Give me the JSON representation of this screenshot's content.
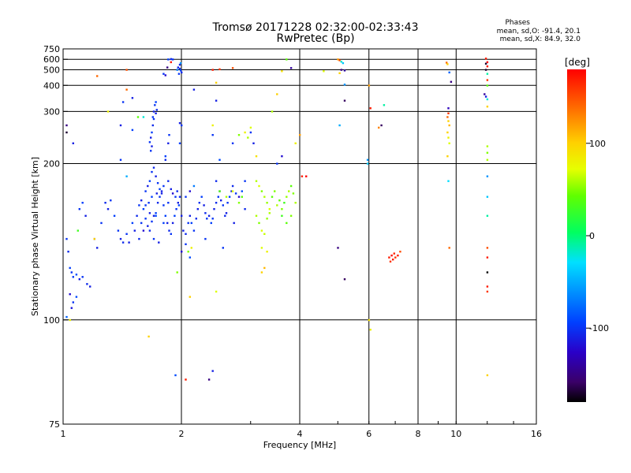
{
  "header": {
    "title": "Tromsø 20171228 02:32:00-02:33:43",
    "subtitle": "RwPretec (Bp)",
    "stats_title": "Phases",
    "stats_line1": "mean, sd,O: -91.4, 20.1",
    "stats_line2": "mean, sd,X:  84.9, 32.0"
  },
  "colorbar": {
    "title": "[deg]",
    "tick_labels": [
      "100",
      "0",
      "-100"
    ],
    "ticks": [
      100,
      0,
      -100
    ],
    "range": [
      -180,
      180
    ]
  },
  "chart_data": {
    "type": "scatter",
    "xlabel": "Frequency [MHz]",
    "ylabel": "Stationary phase Virtual Height [km]",
    "xscale": "log2",
    "yscale": "reciprocal",
    "xlim": [
      1,
      16
    ],
    "ylim": [
      75,
      750
    ],
    "x_ticks": [
      1,
      2,
      4,
      6,
      8,
      10,
      16
    ],
    "x_tick_labels": [
      "1",
      "2",
      "4",
      "6",
      "8",
      "10",
      "16"
    ],
    "y_ticks": [
      75,
      100,
      200,
      300,
      400,
      500,
      600,
      750
    ],
    "y_tick_labels": [
      "75",
      "100",
      "200",
      "300",
      "400",
      "500",
      "600",
      "750"
    ],
    "grid": true,
    "color_encodes": "phase [deg]",
    "points": [
      [
        1.02,
        135,
        -100
      ],
      [
        1.03,
        128,
        -105
      ],
      [
        1.04,
        120,
        -95
      ],
      [
        1.05,
        118,
        -100
      ],
      [
        1.06,
        116,
        -98
      ],
      [
        1.08,
        117,
        -90
      ],
      [
        1.1,
        115,
        -110
      ],
      [
        1.12,
        116,
        -100
      ],
      [
        1.15,
        113,
        -105
      ],
      [
        1.17,
        112,
        -110
      ],
      [
        1.04,
        109,
        -120
      ],
      [
        1.05,
        104,
        -115
      ],
      [
        1.06,
        106,
        -100
      ],
      [
        1.08,
        108,
        -90
      ],
      [
        1.02,
        101,
        -80
      ],
      [
        1.04,
        100,
        80
      ],
      [
        1.09,
        140,
        30
      ],
      [
        1.1,
        155,
        -100
      ],
      [
        1.12,
        160,
        -95
      ],
      [
        1.14,
        150,
        -110
      ],
      [
        1.2,
        135,
        -105
      ],
      [
        1.22,
        130,
        -110
      ],
      [
        1.25,
        145,
        -100
      ],
      [
        1.28,
        160,
        -105
      ],
      [
        1.3,
        155,
        -110
      ],
      [
        1.32,
        162,
        -100
      ],
      [
        1.35,
        150,
        -95
      ],
      [
        1.38,
        140,
        -100
      ],
      [
        1.4,
        135,
        -110
      ],
      [
        1.42,
        133,
        -105
      ],
      [
        1.45,
        138,
        -100
      ],
      [
        1.47,
        133,
        -110
      ],
      [
        1.5,
        145,
        -95
      ],
      [
        1.52,
        140,
        -110
      ],
      [
        1.54,
        150,
        -105
      ],
      [
        1.56,
        158,
        -100
      ],
      [
        1.58,
        162,
        -110
      ],
      [
        1.6,
        155,
        -95
      ],
      [
        1.62,
        148,
        -100
      ],
      [
        1.64,
        143,
        -110
      ],
      [
        1.66,
        140,
        -105
      ],
      [
        1.68,
        146,
        -100
      ],
      [
        1.7,
        150,
        -110
      ],
      [
        1.72,
        152,
        -95
      ],
      [
        1.74,
        160,
        -105
      ],
      [
        1.76,
        165,
        -100
      ],
      [
        1.78,
        170,
        -110
      ],
      [
        1.8,
        158,
        -100
      ],
      [
        1.82,
        150,
        -95
      ],
      [
        1.84,
        145,
        -110
      ],
      [
        1.86,
        140,
        -105
      ],
      [
        1.88,
        138,
        -100
      ],
      [
        1.9,
        145,
        -110
      ],
      [
        1.92,
        150,
        -95
      ],
      [
        1.94,
        155,
        -100
      ],
      [
        1.96,
        160,
        -110
      ],
      [
        1.98,
        165,
        -105
      ],
      [
        1.62,
        170,
        -100
      ],
      [
        1.64,
        175,
        -110
      ],
      [
        1.66,
        180,
        -95
      ],
      [
        1.68,
        190,
        -100
      ],
      [
        1.7,
        195,
        -105
      ],
      [
        1.72,
        185,
        -110
      ],
      [
        1.74,
        178,
        -100
      ],
      [
        1.76,
        172,
        -95
      ],
      [
        1.78,
        168,
        -110
      ],
      [
        1.58,
        145,
        -100
      ],
      [
        1.6,
        140,
        -120
      ],
      [
        1.56,
        135,
        -105
      ],
      [
        1.7,
        135,
        -100
      ],
      [
        1.75,
        133,
        -110
      ],
      [
        1.8,
        145,
        -95
      ],
      [
        1.85,
        160,
        -100
      ],
      [
        1.9,
        168,
        -120
      ],
      [
        1.95,
        170,
        -105
      ],
      [
        1.72,
        150,
        -90
      ],
      [
        1.66,
        152,
        -110
      ],
      [
        1.62,
        158,
        -100
      ],
      [
        1.68,
        165,
        -95
      ],
      [
        1.73,
        168,
        -110
      ],
      [
        1.8,
        175,
        -100
      ],
      [
        1.85,
        180,
        -105
      ],
      [
        1.88,
        172,
        -110
      ],
      [
        1.93,
        165,
        -100
      ],
      [
        1.97,
        158,
        -95
      ],
      [
        2.0,
        150,
        -110
      ],
      [
        1.65,
        160,
        -100
      ],
      [
        1.66,
        232,
        -100
      ],
      [
        1.67,
        240,
        -110
      ],
      [
        1.68,
        250,
        -95
      ],
      [
        1.69,
        265,
        -105
      ],
      [
        1.7,
        280,
        -100
      ],
      [
        1.7,
        300,
        -110
      ],
      [
        1.71,
        320,
        -100
      ],
      [
        1.72,
        330,
        -95
      ],
      [
        1.72,
        295,
        -110
      ],
      [
        1.69,
        285,
        -100
      ],
      [
        1.73,
        305,
        -105
      ],
      [
        1.68,
        225,
        -110
      ],
      [
        1.67,
        218,
        -100
      ],
      [
        1.82,
        210,
        -95
      ],
      [
        1.85,
        230,
        -110
      ],
      [
        1.86,
        245,
        -100
      ],
      [
        1.82,
        205,
        -105
      ],
      [
        1.98,
        270,
        -110
      ],
      [
        2.0,
        265,
        -100
      ],
      [
        1.98,
        230,
        -95
      ],
      [
        1.85,
        600,
        -95
      ],
      [
        1.88,
        605,
        -105
      ],
      [
        1.9,
        600,
        -100
      ],
      [
        1.96,
        520,
        -110
      ],
      [
        1.98,
        510,
        -100
      ],
      [
        1.99,
        495,
        -95
      ],
      [
        2.0,
        480,
        -105
      ],
      [
        1.97,
        470,
        -100
      ],
      [
        1.98,
        545,
        -110
      ],
      [
        1.99,
        560,
        -60
      ],
      [
        1.95,
        500,
        -70
      ],
      [
        1.8,
        470,
        -100
      ],
      [
        1.82,
        460,
        -120
      ],
      [
        1.84,
        520,
        -150
      ],
      [
        1.88,
        570,
        170
      ],
      [
        2.02,
        140,
        -110
      ],
      [
        2.05,
        138,
        -105
      ],
      [
        2.08,
        145,
        -100
      ],
      [
        2.1,
        150,
        -110
      ],
      [
        2.12,
        145,
        -95
      ],
      [
        2.15,
        140,
        -100
      ],
      [
        2.18,
        148,
        -105
      ],
      [
        2.2,
        155,
        -110
      ],
      [
        2.22,
        160,
        -100
      ],
      [
        2.25,
        165,
        -95
      ],
      [
        2.28,
        158,
        -110
      ],
      [
        2.3,
        152,
        -105
      ],
      [
        2.32,
        148,
        -100
      ],
      [
        2.35,
        150,
        -110
      ],
      [
        2.38,
        145,
        -95
      ],
      [
        2.4,
        148,
        -100
      ],
      [
        2.42,
        155,
        -110
      ],
      [
        2.45,
        160,
        -105
      ],
      [
        2.48,
        165,
        -100
      ],
      [
        2.5,
        170,
        -95
      ],
      [
        2.52,
        162,
        -110
      ],
      [
        2.55,
        158,
        -100
      ],
      [
        2.58,
        150,
        -105
      ],
      [
        2.6,
        152,
        -110
      ],
      [
        2.62,
        160,
        -100
      ],
      [
        2.65,
        165,
        -95
      ],
      [
        2.68,
        170,
        -110
      ],
      [
        2.7,
        175,
        -105
      ],
      [
        2.75,
        168,
        -100
      ],
      [
        2.8,
        165,
        -120
      ],
      [
        2.85,
        170,
        -90
      ],
      [
        2.9,
        180,
        -100
      ],
      [
        2.72,
        145,
        -110
      ],
      [
        2.05,
        165,
        -100
      ],
      [
        2.1,
        170,
        -120
      ],
      [
        2.15,
        175,
        -70
      ],
      [
        2.0,
        128,
        -120
      ],
      [
        2.05,
        132,
        -100
      ],
      [
        2.1,
        125,
        -90
      ],
      [
        2.08,
        128,
        50
      ],
      [
        2.12,
        130,
        80
      ],
      [
        1.95,
        118,
        50
      ],
      [
        2.1,
        108,
        100
      ],
      [
        2.15,
        380,
        -110
      ],
      [
        2.45,
        180,
        -105
      ],
      [
        2.5,
        170,
        40
      ],
      [
        2.6,
        165,
        60
      ],
      [
        2.7,
        170,
        70
      ],
      [
        2.8,
        160,
        50
      ],
      [
        2.85,
        165,
        40
      ],
      [
        2.9,
        155,
        -105
      ],
      [
        2.95,
        240,
        60
      ],
      [
        3.0,
        260,
        70
      ],
      [
        2.9,
        250,
        80
      ],
      [
        2.8,
        245,
        50
      ],
      [
        2.7,
        230,
        -100
      ],
      [
        2.5,
        205,
        -90
      ],
      [
        2.4,
        245,
        -100
      ],
      [
        2.45,
        335,
        -110
      ],
      [
        2.4,
        265,
        80
      ],
      [
        2.45,
        415,
        100
      ],
      [
        2.4,
        500,
        170
      ],
      [
        2.5,
        505,
        160
      ],
      [
        2.7,
        515,
        150
      ],
      [
        3.1,
        180,
        60
      ],
      [
        3.15,
        175,
        70
      ],
      [
        3.2,
        170,
        50
      ],
      [
        3.25,
        165,
        60
      ],
      [
        3.3,
        160,
        55
      ],
      [
        3.35,
        155,
        70
      ],
      [
        3.1,
        150,
        60
      ],
      [
        3.15,
        145,
        50
      ],
      [
        3.2,
        140,
        70
      ],
      [
        3.25,
        138,
        65
      ],
      [
        3.3,
        148,
        55
      ],
      [
        3.35,
        152,
        60
      ],
      [
        3.4,
        165,
        40
      ],
      [
        3.45,
        170,
        50
      ],
      [
        3.5,
        158,
        60
      ],
      [
        3.55,
        162,
        40
      ],
      [
        3.6,
        155,
        50
      ],
      [
        3.65,
        160,
        30
      ],
      [
        3.7,
        165,
        55
      ],
      [
        3.75,
        170,
        60
      ],
      [
        3.8,
        175,
        40
      ],
      [
        3.85,
        168,
        50
      ],
      [
        3.6,
        150,
        30
      ],
      [
        3.7,
        145,
        40
      ],
      [
        3.8,
        150,
        50
      ],
      [
        3.9,
        160,
        60
      ],
      [
        3.2,
        130,
        70
      ],
      [
        3.3,
        128,
        80
      ],
      [
        3.2,
        118,
        100
      ],
      [
        3.25,
        120,
        110
      ],
      [
        3.4,
        300,
        60
      ],
      [
        3.5,
        360,
        100
      ],
      [
        3.6,
        490,
        90
      ],
      [
        3.7,
        600,
        40
      ],
      [
        3.8,
        515,
        -140
      ],
      [
        3.5,
        200,
        -100
      ],
      [
        3.6,
        210,
        -120
      ],
      [
        3.9,
        230,
        80
      ],
      [
        4.0,
        245,
        120
      ],
      [
        4.05,
        185,
        170
      ],
      [
        4.15,
        185,
        180
      ],
      [
        3.0,
        250,
        -100
      ],
      [
        3.05,
        230,
        -110
      ],
      [
        3.1,
        210,
        90
      ],
      [
        4.6,
        490,
        70
      ],
      [
        5.0,
        600,
        120
      ],
      [
        5.05,
        590,
        150
      ],
      [
        5.1,
        575,
        -20
      ],
      [
        5.15,
        560,
        -40
      ],
      [
        5.1,
        500,
        -150
      ],
      [
        5.2,
        495,
        -140
      ],
      [
        5.05,
        475,
        100
      ],
      [
        5.2,
        405,
        -60
      ],
      [
        5.2,
        335,
        -160
      ],
      [
        5.05,
        265,
        -50
      ],
      [
        5.0,
        130,
        -150
      ],
      [
        5.2,
        115,
        -160
      ],
      [
        5.95,
        200,
        -40
      ],
      [
        5.95,
        205,
        -60
      ],
      [
        6.05,
        310,
        170
      ],
      [
        6.35,
        260,
        130
      ],
      [
        6.45,
        265,
        -160
      ],
      [
        6.55,
        320,
        -10
      ],
      [
        6.75,
        125,
        170
      ],
      [
        6.8,
        123,
        160
      ],
      [
        6.85,
        126,
        175
      ],
      [
        6.9,
        124,
        170
      ],
      [
        6.95,
        127,
        165
      ],
      [
        7.0,
        125,
        160
      ],
      [
        7.1,
        126,
        170
      ],
      [
        7.2,
        128,
        150
      ],
      [
        6.0,
        100,
        90
      ],
      [
        6.05,
        97,
        80
      ],
      [
        6.0,
        400,
        120
      ],
      [
        9.45,
        565,
        140
      ],
      [
        9.5,
        550,
        100
      ],
      [
        9.55,
        310,
        -130
      ],
      [
        9.55,
        295,
        160
      ],
      [
        9.5,
        285,
        140
      ],
      [
        9.55,
        275,
        100
      ],
      [
        9.6,
        265,
        110
      ],
      [
        9.5,
        250,
        100
      ],
      [
        9.55,
        240,
        80
      ],
      [
        9.6,
        230,
        70
      ],
      [
        9.5,
        210,
        100
      ],
      [
        9.55,
        180,
        -30
      ],
      [
        9.6,
        130,
        140
      ],
      [
        9.6,
        480,
        -80
      ],
      [
        9.7,
        420,
        -150
      ],
      [
        11.9,
        610,
        170
      ],
      [
        12.0,
        570,
        180
      ],
      [
        11.9,
        555,
        -170
      ],
      [
        12.0,
        530,
        170
      ],
      [
        11.9,
        500,
        -170
      ],
      [
        12.0,
        470,
        -10
      ],
      [
        12.0,
        430,
        160
      ],
      [
        12.0,
        400,
        40
      ],
      [
        11.8,
        360,
        -140
      ],
      [
        11.9,
        350,
        -110
      ],
      [
        12.0,
        340,
        -20
      ],
      [
        12.0,
        315,
        100
      ],
      [
        12.0,
        225,
        60
      ],
      [
        12.0,
        215,
        50
      ],
      [
        12.0,
        205,
        60
      ],
      [
        12.0,
        185,
        -60
      ],
      [
        12.0,
        165,
        -40
      ],
      [
        12.0,
        150,
        -10
      ],
      [
        12.0,
        130,
        150
      ],
      [
        12.0,
        125,
        170
      ],
      [
        12.0,
        118,
        -180
      ],
      [
        12.0,
        112,
        170
      ],
      [
        12.0,
        110,
        160
      ],
      [
        12.0,
        85,
        100
      ],
      [
        1.22,
        455,
        140
      ],
      [
        1.45,
        500,
        150
      ],
      [
        1.45,
        380,
        140
      ],
      [
        1.5,
        345,
        -110
      ],
      [
        1.42,
        330,
        -100
      ],
      [
        1.3,
        300,
        80
      ],
      [
        1.55,
        285,
        40
      ],
      [
        1.6,
        285,
        -20
      ],
      [
        1.4,
        265,
        -110
      ],
      [
        1.5,
        255,
        -95
      ],
      [
        1.02,
        265,
        -150
      ],
      [
        1.02,
        250,
        -170
      ],
      [
        1.06,
        230,
        -110
      ],
      [
        1.4,
        205,
        -100
      ],
      [
        1.45,
        185,
        -50
      ],
      [
        1.2,
        135,
        100
      ],
      [
        1.65,
        95,
        100
      ],
      [
        1.93,
        85,
        -90
      ],
      [
        2.05,
        84,
        170
      ],
      [
        2.35,
        84,
        -150
      ],
      [
        2.4,
        86,
        -110
      ],
      [
        2.3,
        135,
        -100
      ],
      [
        2.45,
        110,
        70
      ],
      [
        2.55,
        130,
        -100
      ]
    ]
  }
}
